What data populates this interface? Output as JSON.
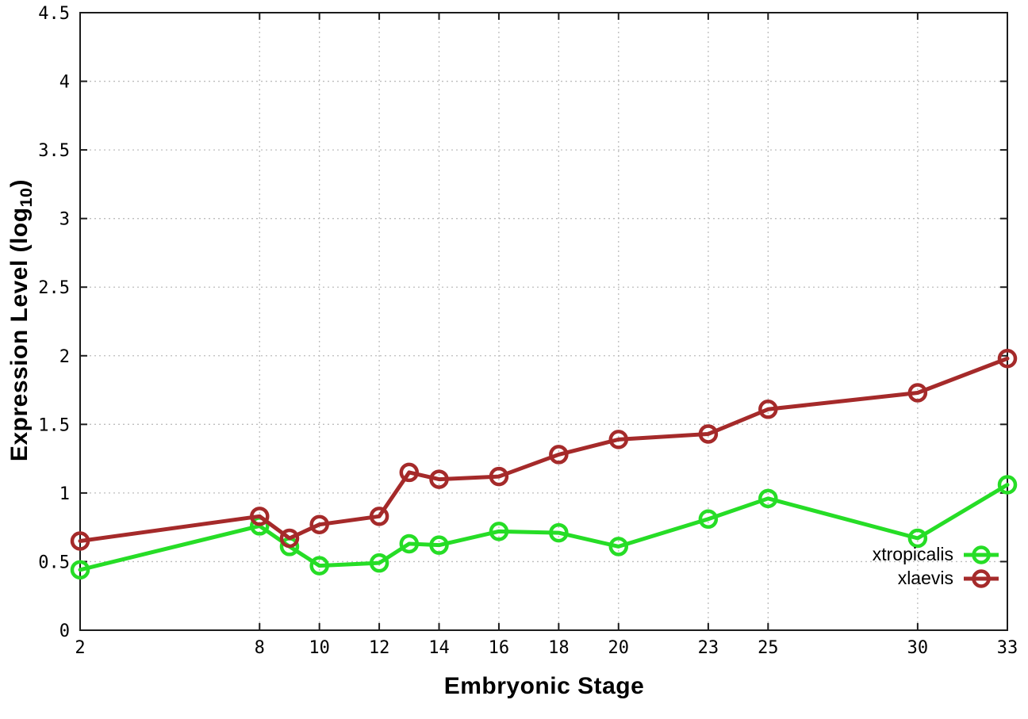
{
  "figure": {
    "xlabel": "Embryonic Stage",
    "ylabel_prefix": "Expression Level (log",
    "ylabel_sub": "10",
    "ylabel_suffix": ")"
  },
  "chart_data": {
    "type": "line",
    "title": "",
    "xlabel": "Embryonic Stage",
    "ylabel": "Expression Level (log10)",
    "marker": "open-circle",
    "grid": true,
    "legend_position": "bottom-right",
    "xlim": [
      2,
      33
    ],
    "ylim": [
      0,
      4.5
    ],
    "x": [
      2,
      8,
      9,
      10,
      12,
      13,
      14,
      16,
      18,
      20,
      23,
      25,
      30,
      33
    ],
    "xticks": [
      2,
      8,
      10,
      12,
      14,
      16,
      18,
      20,
      23,
      25,
      30,
      33
    ],
    "yticks": [
      0,
      0.5,
      1,
      1.5,
      2,
      2.5,
      3,
      3.5,
      4,
      4.5
    ],
    "series": [
      {
        "name": "xtropicalis",
        "color": "#26dd26",
        "values": [
          0.44,
          0.76,
          0.61,
          0.47,
          0.49,
          0.63,
          0.62,
          0.72,
          0.71,
          0.61,
          0.81,
          0.96,
          0.67,
          1.06
        ]
      },
      {
        "name": "xlaevis",
        "color": "#a52a2a",
        "values": [
          0.65,
          0.83,
          0.67,
          0.77,
          0.83,
          1.15,
          1.1,
          1.12,
          1.28,
          1.39,
          1.43,
          1.61,
          1.73,
          1.98
        ]
      }
    ]
  },
  "style": {
    "grid_color": "#bdbdbd",
    "border_color": "#1c1c1c",
    "text_color": "#000000",
    "background": "#ffffff"
  }
}
